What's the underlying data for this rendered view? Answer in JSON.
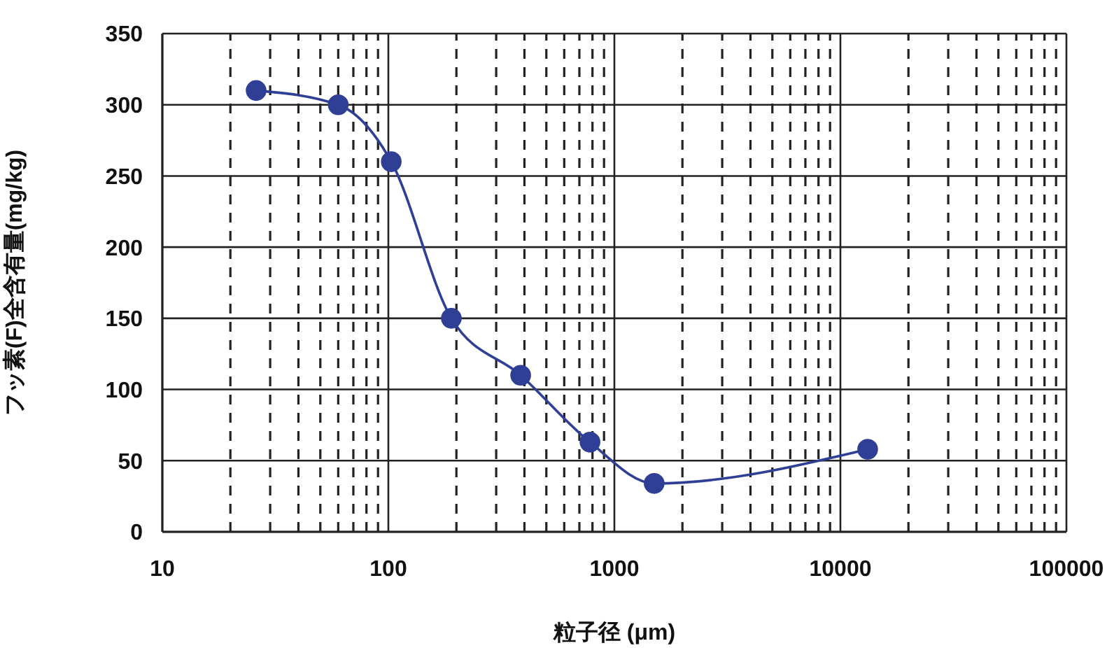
{
  "chart_data": {
    "type": "line",
    "xlabel": "粒子径 (μm)",
    "ylabel": "フッ素(F)全含有量(mg/kg)",
    "x": [
      26,
      60,
      103,
      190,
      385,
      780,
      1500,
      13200
    ],
    "series": [
      {
        "color": "#2f3f96",
        "values": [
          310,
          300,
          260,
          150,
          110,
          63,
          34,
          58
        ]
      }
    ],
    "log": "x",
    "xlim": [
      10,
      100000
    ],
    "xticks": [
      10,
      {
        "value": 20,
        "label": null
      },
      {
        "value": 30,
        "label": null
      },
      {
        "value": 40,
        "label": null
      },
      {
        "value": 50,
        "label": null
      },
      {
        "value": 60,
        "label": null
      },
      {
        "value": 70,
        "label": null
      },
      {
        "value": 80,
        "label": null
      },
      {
        "value": 90,
        "label": null
      },
      100,
      {
        "value": 200,
        "label": null
      },
      {
        "value": 300,
        "label": null
      },
      {
        "value": 400,
        "label": null
      },
      {
        "value": 500,
        "label": null
      },
      {
        "value": 600,
        "label": null
      },
      {
        "value": 700,
        "label": null
      },
      {
        "value": 800,
        "label": null
      },
      {
        "value": 900,
        "label": null
      },
      1000,
      {
        "value": 2000,
        "label": null
      },
      {
        "value": 3000,
        "label": null
      },
      {
        "value": 4000,
        "label": null
      },
      {
        "value": 5000,
        "label": null
      },
      {
        "value": 6000,
        "label": null
      },
      {
        "value": 7000,
        "label": null
      },
      {
        "value": 8000,
        "label": null
      },
      {
        "value": 9000,
        "label": null
      },
      10000,
      {
        "value": 20000,
        "label": null
      },
      {
        "value": 30000,
        "label": null
      },
      {
        "value": 40000,
        "label": null
      },
      {
        "value": 50000,
        "label": null
      },
      {
        "value": 60000,
        "label": null
      },
      {
        "value": 70000,
        "label": null
      },
      {
        "value": 80000,
        "label": null
      },
      {
        "value": 90000,
        "label": null
      },
      100000
    ],
    "ylim": [
      0,
      350
    ],
    "yticks": [
      0,
      50,
      100,
      150,
      200,
      250,
      300,
      350
    ],
    "grid": true,
    "marker": "circle",
    "line_style": "solid"
  }
}
